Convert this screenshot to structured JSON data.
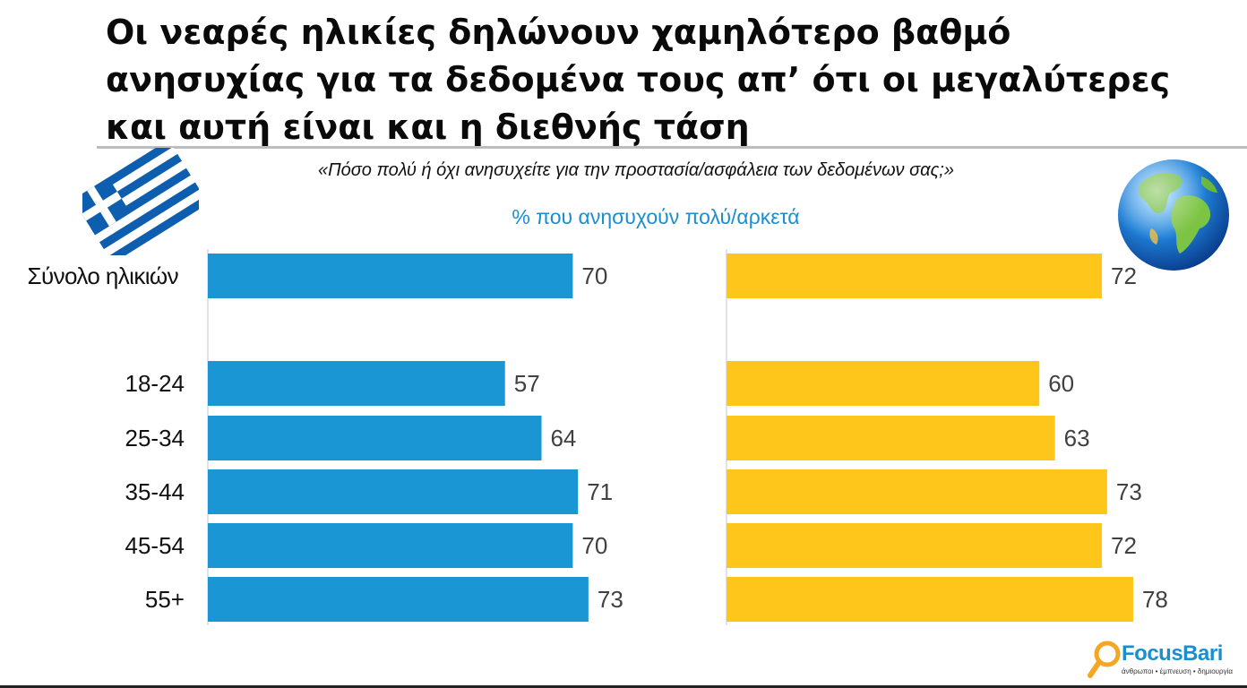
{
  "header": {
    "title_lines": [
      "Οι νεαρές ηλικίες δηλώνουν χαμηλότερο βαθμό",
      "ανησυχίας για τα δεδομένα τους απ’ ότι οι μεγαλύτερες",
      "και αυτή είναι και η διεθνής τάση"
    ],
    "question": "«Πόσο πολύ ή όχι ανησυχείτε για την προστασία/ασφάλεια των δεδομένων σας;»",
    "subtitle": "% που ανησυχούν πολύ/αρκετά"
  },
  "icons": {
    "left": "greek-flag-icon",
    "right": "globe-icon",
    "logo": "magnifier-logo-icon"
  },
  "logo": {
    "name": "FocusBari",
    "tagline": "άνθρωποι • έμπνευση • δημιουργία"
  },
  "colors": {
    "greece": "#1a96d5",
    "world": "#fec51a",
    "subtitle": "#1a8fd0",
    "flag": "#0d5eaf"
  },
  "chart_data": [
    {
      "type": "bar",
      "orientation": "horizontal",
      "categories": [
        "Σύνολο ηλικιών",
        "18-24",
        "25-34",
        "35-44",
        "45-54",
        "55+"
      ],
      "values": [
        70,
        57,
        64,
        71,
        70,
        73
      ],
      "xlim": [
        0,
        100
      ],
      "data_labels": true,
      "grid": false
    },
    {
      "type": "bar",
      "orientation": "horizontal",
      "categories": [
        "Σύνολο ηλικιών",
        "18-24",
        "25-34",
        "35-44",
        "45-54",
        "55+"
      ],
      "values": [
        72,
        60,
        63,
        73,
        72,
        78
      ],
      "xlim": [
        0,
        100
      ],
      "data_labels": true,
      "grid": false
    }
  ]
}
